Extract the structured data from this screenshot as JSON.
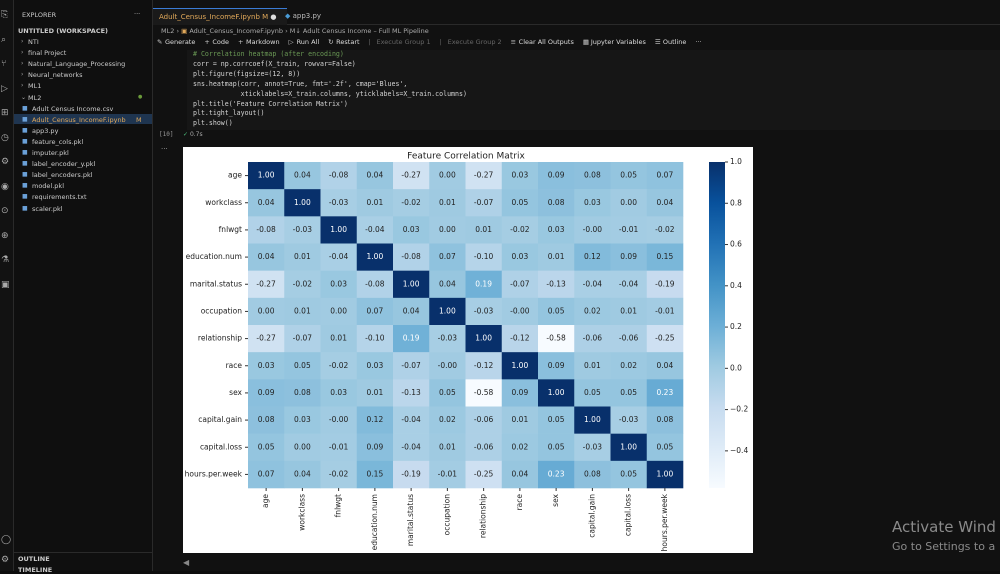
{
  "sidebar": {
    "title": "EXPLORER",
    "more": "···",
    "workspace": "UNTITLED (WORKSPACE)",
    "items": [
      {
        "label": "NTI"
      },
      {
        "label": "final Project"
      },
      {
        "label": "Natural_Language_Processing"
      },
      {
        "label": "Neural_networks"
      },
      {
        "label": "ML1"
      },
      {
        "label": "ML2"
      },
      {
        "label": "Adult Census Income.csv"
      },
      {
        "label": "Adult_Census_IncomeF.ipynb",
        "badge": "M"
      },
      {
        "label": "app3.py"
      },
      {
        "label": "feature_cols.pkl"
      },
      {
        "label": "imputer.pkl"
      },
      {
        "label": "label_encoder_y.pkl"
      },
      {
        "label": "label_encoders.pkl"
      },
      {
        "label": "model.pkl"
      },
      {
        "label": "requirements.txt"
      },
      {
        "label": "scaler.pkl"
      }
    ],
    "outline": "OUTLINE",
    "timeline": "TIMELINE"
  },
  "tabs": [
    {
      "label": "Adult_Census_IncomeF.ipynb",
      "badge": "M"
    },
    {
      "label": "app3.py"
    }
  ],
  "breadcrumb": [
    "ML2",
    "Adult_Census_IncomeF.ipynb",
    "Adult Census Income – Full ML Pipeline"
  ],
  "toolbar": [
    "Generate",
    "Code",
    "Markdown",
    "Run All",
    "Restart",
    "Execute Group 1",
    "Execute Group 2",
    "Clear All Outputs",
    "Jupyter Variables",
    "Outline"
  ],
  "cell": {
    "code": [
      "# Correlation heatmap (after encoding)",
      "corr = np.corrcoef(X_train, rowvar=False)",
      "plt.figure(figsize=(12, 8))",
      "sns.heatmap(corr, annot=True, fmt='.2f', cmap='Blues',",
      "            xticklabels=X_train.columns, yticklabels=X_train.columns)",
      "plt.title('Feature Correlation Matrix')",
      "plt.tight_layout()",
      "plt.show()"
    ],
    "count": "[10]",
    "time": "0.7s"
  },
  "watermark": [
    "Activate Wind",
    "Go to Settings to a"
  ],
  "chart_data": {
    "type": "heatmap",
    "title": "Feature Correlation Matrix",
    "colormap": "Blues",
    "categories": [
      "age",
      "workclass",
      "fnlwgt",
      "education.num",
      "marital.status",
      "occupation",
      "relationship",
      "race",
      "sex",
      "capital.gain",
      "capital.loss",
      "hours.per.week"
    ],
    "values": [
      [
        1.0,
        0.04,
        -0.08,
        0.04,
        -0.27,
        0.0,
        -0.27,
        0.03,
        0.09,
        0.08,
        0.05,
        0.07
      ],
      [
        0.04,
        1.0,
        -0.03,
        0.01,
        -0.02,
        0.01,
        -0.07,
        0.05,
        0.08,
        0.03,
        0.0,
        0.04
      ],
      [
        -0.08,
        -0.03,
        1.0,
        -0.04,
        0.03,
        0.0,
        0.01,
        -0.02,
        0.03,
        -0.0,
        -0.01,
        -0.02
      ],
      [
        0.04,
        0.01,
        -0.04,
        1.0,
        -0.08,
        0.07,
        -0.1,
        0.03,
        0.01,
        0.12,
        0.09,
        0.15
      ],
      [
        -0.27,
        -0.02,
        0.03,
        -0.08,
        1.0,
        0.04,
        0.19,
        -0.07,
        -0.13,
        -0.04,
        -0.04,
        -0.19
      ],
      [
        0.0,
        0.01,
        0.0,
        0.07,
        0.04,
        1.0,
        -0.03,
        -0.0,
        0.05,
        0.02,
        0.01,
        -0.01
      ],
      [
        -0.27,
        -0.07,
        0.01,
        -0.1,
        0.19,
        -0.03,
        1.0,
        -0.12,
        -0.58,
        -0.06,
        -0.06,
        -0.25
      ],
      [
        0.03,
        0.05,
        -0.02,
        0.03,
        -0.07,
        -0.0,
        -0.12,
        1.0,
        0.09,
        0.01,
        0.02,
        0.04
      ],
      [
        0.09,
        0.08,
        0.03,
        0.01,
        -0.13,
        0.05,
        -0.58,
        0.09,
        1.0,
        0.05,
        0.05,
        0.23
      ],
      [
        0.08,
        0.03,
        -0.0,
        0.12,
        -0.04,
        0.02,
        -0.06,
        0.01,
        0.05,
        1.0,
        -0.03,
        0.08
      ],
      [
        0.05,
        0.0,
        -0.01,
        0.09,
        -0.04,
        0.01,
        -0.06,
        0.02,
        0.05,
        -0.03,
        1.0,
        0.05
      ],
      [
        0.07,
        0.04,
        -0.02,
        0.15,
        -0.19,
        -0.01,
        -0.25,
        0.04,
        0.23,
        0.08,
        0.05,
        1.0
      ]
    ],
    "value_labels": [
      [
        "1.00",
        "0.04",
        "-0.08",
        "0.04",
        "-0.27",
        "0.00",
        "-0.27",
        "0.03",
        "0.09",
        "0.08",
        "0.05",
        "0.07"
      ],
      [
        "0.04",
        "1.00",
        "-0.03",
        "0.01",
        "-0.02",
        "0.01",
        "-0.07",
        "0.05",
        "0.08",
        "0.03",
        "0.00",
        "0.04"
      ],
      [
        "-0.08",
        "-0.03",
        "1.00",
        "-0.04",
        "0.03",
        "0.00",
        "0.01",
        "-0.02",
        "0.03",
        "-0.00",
        "-0.01",
        "-0.02"
      ],
      [
        "0.04",
        "0.01",
        "-0.04",
        "1.00",
        "-0.08",
        "0.07",
        "-0.10",
        "0.03",
        "0.01",
        "0.12",
        "0.09",
        "0.15"
      ],
      [
        "-0.27",
        "-0.02",
        "0.03",
        "-0.08",
        "1.00",
        "0.04",
        "0.19",
        "-0.07",
        "-0.13",
        "-0.04",
        "-0.04",
        "-0.19"
      ],
      [
        "0.00",
        "0.01",
        "0.00",
        "0.07",
        "0.04",
        "1.00",
        "-0.03",
        "-0.00",
        "0.05",
        "0.02",
        "0.01",
        "-0.01"
      ],
      [
        "-0.27",
        "-0.07",
        "0.01",
        "-0.10",
        "0.19",
        "-0.03",
        "1.00",
        "-0.12",
        "-0.58",
        "-0.06",
        "-0.06",
        "-0.25"
      ],
      [
        "0.03",
        "0.05",
        "-0.02",
        "0.03",
        "-0.07",
        "-0.00",
        "-0.12",
        "1.00",
        "0.09",
        "0.01",
        "0.02",
        "0.04"
      ],
      [
        "0.09",
        "0.08",
        "0.03",
        "0.01",
        "-0.13",
        "0.05",
        "-0.58",
        "0.09",
        "1.00",
        "0.05",
        "0.05",
        "0.23"
      ],
      [
        "0.08",
        "0.03",
        "-0.00",
        "0.12",
        "-0.04",
        "0.02",
        "-0.06",
        "0.01",
        "0.05",
        "1.00",
        "-0.03",
        "0.08"
      ],
      [
        "0.05",
        "0.00",
        "-0.01",
        "0.09",
        "-0.04",
        "0.01",
        "-0.06",
        "0.02",
        "0.05",
        "-0.03",
        "1.00",
        "0.05"
      ],
      [
        "0.07",
        "0.04",
        "-0.02",
        "0.15",
        "-0.19",
        "-0.01",
        "-0.25",
        "0.04",
        "0.23",
        "0.08",
        "0.05",
        "1.00"
      ]
    ],
    "clim": [
      -0.58,
      1.0
    ],
    "cticks": [
      {
        "value": 1.0,
        "label": "1.0"
      },
      {
        "value": 0.8,
        "label": "0.8"
      },
      {
        "value": 0.6,
        "label": "0.6"
      },
      {
        "value": 0.4,
        "label": "0.4"
      },
      {
        "value": 0.2,
        "label": "0.2"
      },
      {
        "value": 0.0,
        "label": "0.0"
      },
      {
        "value": -0.2,
        "label": "−0.2"
      },
      {
        "value": -0.4,
        "label": "−0.4"
      }
    ]
  }
}
